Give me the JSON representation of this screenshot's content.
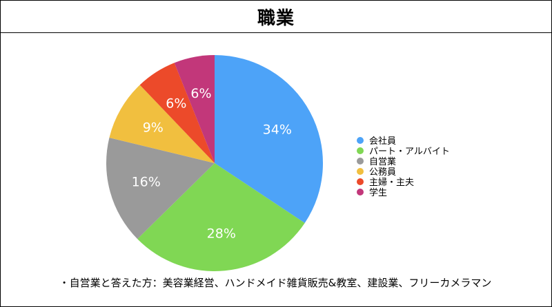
{
  "chart_data": {
    "type": "pie",
    "title": "職業",
    "categories": [
      "会社員",
      "パート・アルバイト",
      "自営業",
      "公務員",
      "主婦・主夫",
      "学生"
    ],
    "values": [
      34,
      28,
      16,
      9,
      6,
      6
    ],
    "value_labels": [
      "34%",
      "28%",
      "16%",
      "9%",
      "6%",
      "6%"
    ],
    "colors": [
      "#4DA3F8",
      "#80D754",
      "#9A9A9A",
      "#F1BF3F",
      "#EC4A2A",
      "#C2377A"
    ],
    "legend_position": "right",
    "start_angle": "12 o'clock",
    "direction": "clockwise"
  },
  "note": "・自営業と答えた方：美容業経営、ハンドメイド雑貨販売&教室、建設業、フリーカメラマン"
}
